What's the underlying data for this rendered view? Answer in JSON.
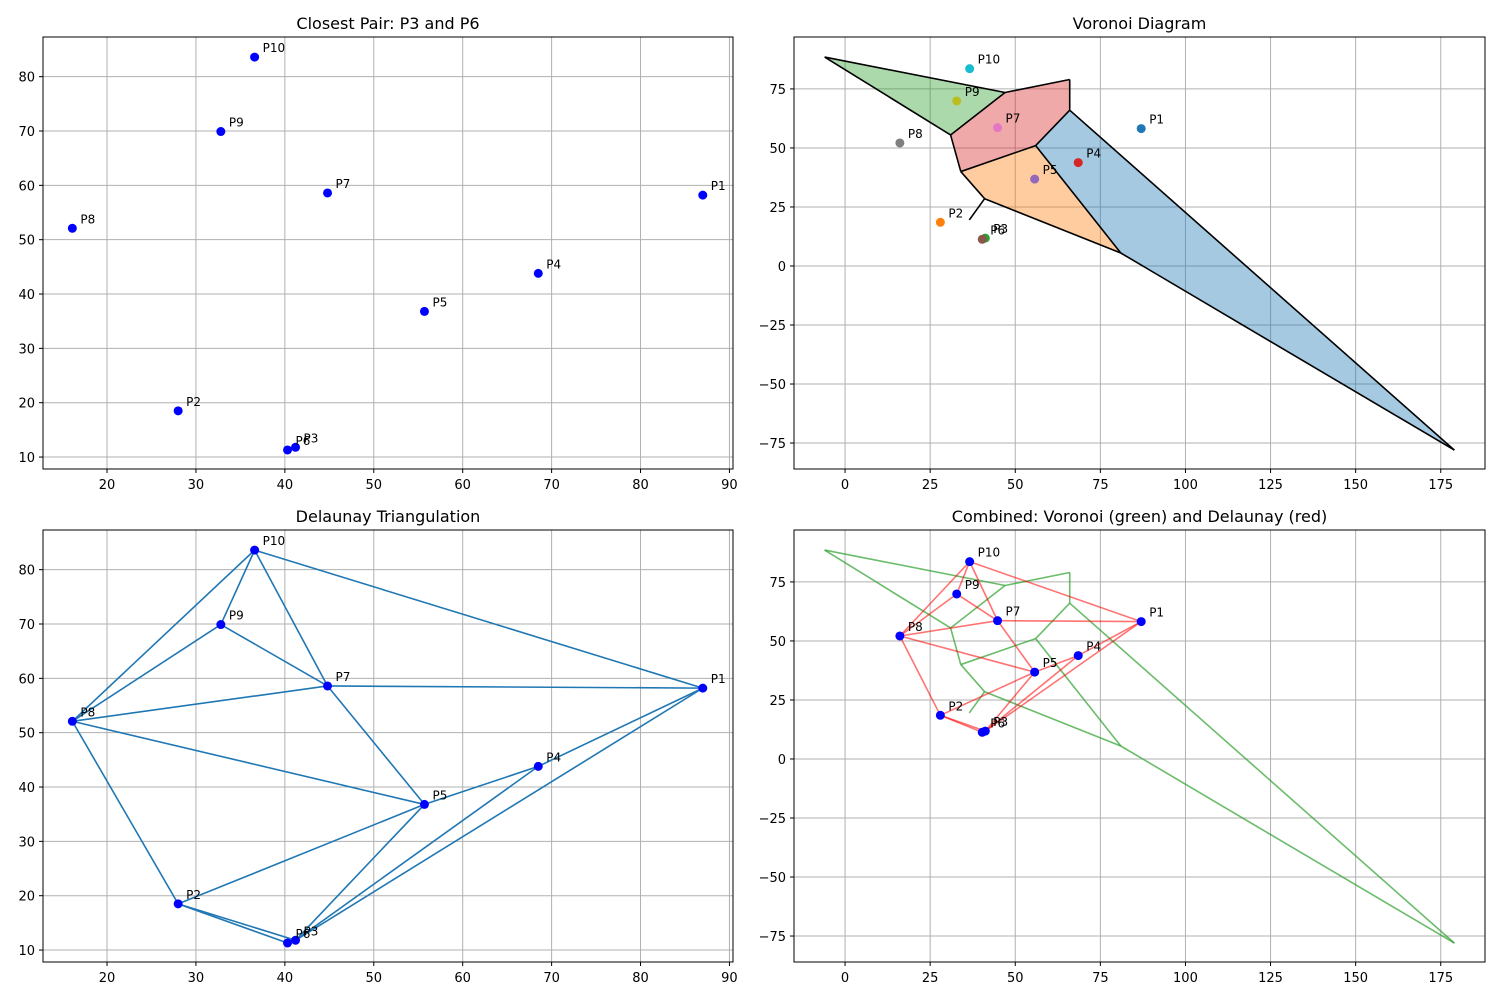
{
  "chart_data": [
    {
      "type": "scatter",
      "title": "Closest Pair: P3 and P6",
      "xlim": [
        12.8,
        90.4
      ],
      "ylim": [
        7.8,
        87.3
      ],
      "xticks": [
        20,
        30,
        40,
        50,
        60,
        70,
        80,
        90
      ],
      "yticks": [
        10,
        20,
        30,
        40,
        50,
        60,
        70,
        80
      ],
      "grid": true,
      "point_color": "#0000ff",
      "points": [
        {
          "label": "P1",
          "x": 87.0,
          "y": 58.2
        },
        {
          "label": "P2",
          "x": 28.0,
          "y": 18.5
        },
        {
          "label": "P3",
          "x": 41.2,
          "y": 11.8
        },
        {
          "label": "P4",
          "x": 68.5,
          "y": 43.8
        },
        {
          "label": "P5",
          "x": 55.7,
          "y": 36.8
        },
        {
          "label": "P6",
          "x": 40.3,
          "y": 11.3
        },
        {
          "label": "P7",
          "x": 44.8,
          "y": 58.6
        },
        {
          "label": "P8",
          "x": 16.1,
          "y": 52.1
        },
        {
          "label": "P9",
          "x": 32.8,
          "y": 69.9
        },
        {
          "label": "P10",
          "x": 36.6,
          "y": 83.6
        }
      ]
    },
    {
      "type": "voronoi",
      "title": "Voronoi Diagram",
      "xlim": [
        -15,
        188
      ],
      "ylim": [
        -86,
        97
      ],
      "xticks": [
        0,
        25,
        50,
        75,
        100,
        125,
        150,
        175
      ],
      "yticks": [
        -75,
        -50,
        -25,
        0,
        25,
        50,
        75
      ],
      "grid": true,
      "points": [
        {
          "label": "P1",
          "x": 87.0,
          "y": 58.2,
          "color": "#1f77b4"
        },
        {
          "label": "P2",
          "x": 28.0,
          "y": 18.5,
          "color": "#ff7f0e"
        },
        {
          "label": "P3",
          "x": 41.2,
          "y": 11.8,
          "color": "#2ca02c"
        },
        {
          "label": "P4",
          "x": 68.5,
          "y": 43.8,
          "color": "#d62728"
        },
        {
          "label": "P5",
          "x": 55.7,
          "y": 36.8,
          "color": "#9467bd"
        },
        {
          "label": "P6",
          "x": 40.3,
          "y": 11.3,
          "color": "#8c564b"
        },
        {
          "label": "P7",
          "x": 44.8,
          "y": 58.6,
          "color": "#e377c2"
        },
        {
          "label": "P8",
          "x": 16.1,
          "y": 52.1,
          "color": "#7f7f7f"
        },
        {
          "label": "P9",
          "x": 32.8,
          "y": 69.9,
          "color": "#bcbd22"
        },
        {
          "label": "P10",
          "x": 36.6,
          "y": 83.6,
          "color": "#17becf"
        }
      ],
      "regions": [
        {
          "color": "#1f77b4",
          "vertices": [
            [
              66,
              66
            ],
            [
              56,
              51
            ],
            [
              81,
              5.5
            ],
            [
              179,
              -78
            ]
          ]
        },
        {
          "color": "#ff7f0e",
          "vertices": [
            [
              34,
              40
            ],
            [
              56,
              51
            ],
            [
              81,
              5.5
            ],
            [
              41,
              28.5
            ]
          ]
        },
        {
          "color": "#d62728",
          "vertices": [
            [
              34,
              40
            ],
            [
              56,
              51
            ],
            [
              66,
              66
            ],
            [
              66,
              79
            ],
            [
              47,
              73.5
            ],
            [
              31,
              55.5
            ]
          ]
        },
        {
          "color": "#2ca02c",
          "vertices": [
            [
              -6,
              88.5
            ],
            [
              47,
              73.5
            ],
            [
              31,
              55.5
            ]
          ]
        }
      ],
      "edges": [
        [
          [
            -6,
            88.5
          ],
          [
            47,
            73.5
          ]
        ],
        [
          [
            -6,
            88.5
          ],
          [
            31,
            55.5
          ]
        ],
        [
          [
            47,
            73.5
          ],
          [
            66,
            79
          ]
        ],
        [
          [
            47,
            73.5
          ],
          [
            31,
            55.5
          ]
        ],
        [
          [
            66,
            79
          ],
          [
            66,
            66
          ]
        ],
        [
          [
            31,
            55.5
          ],
          [
            34,
            40
          ]
        ],
        [
          [
            34,
            40
          ],
          [
            56,
            51
          ]
        ],
        [
          [
            56,
            51
          ],
          [
            66,
            66
          ]
        ],
        [
          [
            66,
            66
          ],
          [
            179,
            -78
          ]
        ],
        [
          [
            56,
            51
          ],
          [
            81,
            5.5
          ]
        ],
        [
          [
            34,
            40
          ],
          [
            41,
            28.5
          ]
        ],
        [
          [
            41,
            28.5
          ],
          [
            81,
            5.5
          ]
        ],
        [
          [
            41,
            28.5
          ],
          [
            36.5,
            19.5
          ]
        ],
        [
          [
            81,
            5.5
          ],
          [
            179,
            -78
          ]
        ]
      ]
    },
    {
      "type": "delaunay",
      "title": "Delaunay Triangulation",
      "xlim": [
        12.8,
        90.4
      ],
      "ylim": [
        7.8,
        87.3
      ],
      "xticks": [
        20,
        30,
        40,
        50,
        60,
        70,
        80,
        90
      ],
      "yticks": [
        10,
        20,
        30,
        40,
        50,
        60,
        70,
        80
      ],
      "grid": true,
      "line_color": "#1f77b4",
      "point_color": "#0000ff",
      "points": [
        {
          "label": "P1",
          "x": 87.0,
          "y": 58.2
        },
        {
          "label": "P2",
          "x": 28.0,
          "y": 18.5
        },
        {
          "label": "P3",
          "x": 41.2,
          "y": 11.8
        },
        {
          "label": "P4",
          "x": 68.5,
          "y": 43.8
        },
        {
          "label": "P5",
          "x": 55.7,
          "y": 36.8
        },
        {
          "label": "P6",
          "x": 40.3,
          "y": 11.3
        },
        {
          "label": "P7",
          "x": 44.8,
          "y": 58.6
        },
        {
          "label": "P8",
          "x": 16.1,
          "y": 52.1
        },
        {
          "label": "P9",
          "x": 32.8,
          "y": 69.9
        },
        {
          "label": "P10",
          "x": 36.6,
          "y": 83.6
        }
      ],
      "edges": [
        [
          "P10",
          "P1"
        ],
        [
          "P10",
          "P9"
        ],
        [
          "P10",
          "P8"
        ],
        [
          "P10",
          "P7"
        ],
        [
          "P9",
          "P8"
        ],
        [
          "P9",
          "P7"
        ],
        [
          "P8",
          "P7"
        ],
        [
          "P8",
          "P5"
        ],
        [
          "P8",
          "P2"
        ],
        [
          "P7",
          "P1"
        ],
        [
          "P7",
          "P5"
        ],
        [
          "P1",
          "P4"
        ],
        [
          "P1",
          "P3"
        ],
        [
          "P4",
          "P5"
        ],
        [
          "P4",
          "P3"
        ],
        [
          "P5",
          "P2"
        ],
        [
          "P5",
          "P3"
        ],
        [
          "P2",
          "P6"
        ],
        [
          "P2",
          "P3"
        ],
        [
          "P6",
          "P3"
        ]
      ]
    },
    {
      "type": "combined",
      "title": "Combined: Voronoi (green) and Delaunay (red)",
      "xlim": [
        -15,
        188
      ],
      "ylim": [
        -86,
        97
      ],
      "xticks": [
        0,
        25,
        50,
        75,
        100,
        125,
        150,
        175
      ],
      "yticks": [
        -75,
        -50,
        -25,
        0,
        25,
        50,
        75
      ],
      "grid": true,
      "voronoi_color": "#2ca02c",
      "delaunay_color": "#ff0000",
      "point_color": "#0000ff",
      "points": [
        {
          "label": "P1",
          "x": 87.0,
          "y": 58.2
        },
        {
          "label": "P2",
          "x": 28.0,
          "y": 18.5
        },
        {
          "label": "P3",
          "x": 41.2,
          "y": 11.8
        },
        {
          "label": "P4",
          "x": 68.5,
          "y": 43.8
        },
        {
          "label": "P5",
          "x": 55.7,
          "y": 36.8
        },
        {
          "label": "P6",
          "x": 40.3,
          "y": 11.3
        },
        {
          "label": "P7",
          "x": 44.8,
          "y": 58.6
        },
        {
          "label": "P8",
          "x": 16.1,
          "y": 52.1
        },
        {
          "label": "P9",
          "x": 32.8,
          "y": 69.9
        },
        {
          "label": "P10",
          "x": 36.6,
          "y": 83.6
        }
      ],
      "voronoi_edges": [
        [
          [
            -6,
            88.5
          ],
          [
            47,
            73.5
          ]
        ],
        [
          [
            -6,
            88.5
          ],
          [
            31,
            55.5
          ]
        ],
        [
          [
            47,
            73.5
          ],
          [
            66,
            79
          ]
        ],
        [
          [
            47,
            73.5
          ],
          [
            31,
            55.5
          ]
        ],
        [
          [
            66,
            79
          ],
          [
            66,
            66
          ]
        ],
        [
          [
            31,
            55.5
          ],
          [
            34,
            40
          ]
        ],
        [
          [
            34,
            40
          ],
          [
            56,
            51
          ]
        ],
        [
          [
            56,
            51
          ],
          [
            66,
            66
          ]
        ],
        [
          [
            66,
            66
          ],
          [
            179,
            -78
          ]
        ],
        [
          [
            56,
            51
          ],
          [
            81,
            5.5
          ]
        ],
        [
          [
            34,
            40
          ],
          [
            41,
            28.5
          ]
        ],
        [
          [
            41,
            28.5
          ],
          [
            81,
            5.5
          ]
        ],
        [
          [
            41,
            28.5
          ],
          [
            36.5,
            19.5
          ]
        ],
        [
          [
            81,
            5.5
          ],
          [
            179,
            -78
          ]
        ]
      ],
      "delaunay_edges": [
        [
          "P10",
          "P1"
        ],
        [
          "P10",
          "P9"
        ],
        [
          "P10",
          "P8"
        ],
        [
          "P10",
          "P7"
        ],
        [
          "P9",
          "P8"
        ],
        [
          "P9",
          "P7"
        ],
        [
          "P8",
          "P7"
        ],
        [
          "P8",
          "P5"
        ],
        [
          "P8",
          "P2"
        ],
        [
          "P7",
          "P1"
        ],
        [
          "P7",
          "P5"
        ],
        [
          "P1",
          "P4"
        ],
        [
          "P1",
          "P3"
        ],
        [
          "P4",
          "P5"
        ],
        [
          "P4",
          "P3"
        ],
        [
          "P5",
          "P2"
        ],
        [
          "P5",
          "P3"
        ],
        [
          "P2",
          "P6"
        ],
        [
          "P2",
          "P3"
        ],
        [
          "P6",
          "P3"
        ]
      ]
    }
  ]
}
